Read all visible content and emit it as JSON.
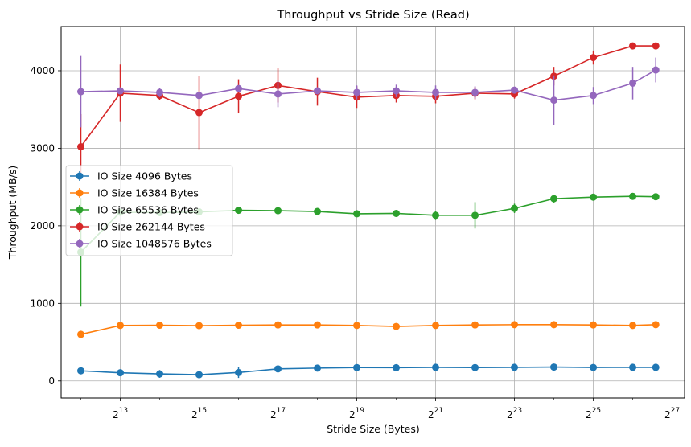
{
  "chart_data": {
    "type": "line",
    "title": "Throughput vs Stride Size (Read)",
    "xlabel": "Stride Size (Bytes)",
    "ylabel": "Throughput (MB/s)",
    "x_scale": "log2",
    "x_ticks": [
      {
        "exp": "13",
        "value": 8192
      },
      {
        "exp": "15",
        "value": 32768
      },
      {
        "exp": "17",
        "value": 131072
      },
      {
        "exp": "19",
        "value": 524288
      },
      {
        "exp": "21",
        "value": 2097152
      },
      {
        "exp": "23",
        "value": 8388608
      },
      {
        "exp": "25",
        "value": 33554432
      },
      {
        "exp": "27",
        "value": 134217728
      }
    ],
    "x_tick_base": "2",
    "y_ticks": [
      0,
      1000,
      2000,
      3000,
      4000
    ],
    "xlim": [
      2896,
      167000000
    ],
    "ylim": [
      -220,
      4570
    ],
    "grid": true,
    "legend_position": "center-left",
    "x": [
      4096,
      8192,
      16384,
      32768,
      65536,
      131072,
      262144,
      524288,
      1048576,
      2097152,
      4194304,
      8388608,
      16777216,
      33554432,
      67108864,
      100663296
    ],
    "series": [
      {
        "name": "IO Size 4096 Bytes",
        "color": "#1f77b4",
        "values": [
          130,
          105,
          90,
          80,
          108,
          155,
          165,
          172,
          170,
          175,
          172,
          175,
          178,
          173,
          175,
          175
        ],
        "errors": [
          15,
          10,
          50,
          30,
          70,
          20,
          15,
          10,
          10,
          10,
          10,
          10,
          10,
          10,
          10,
          10
        ]
      },
      {
        "name": "IO Size 16384 Bytes",
        "color": "#ff7f0e",
        "values": [
          600,
          715,
          718,
          712,
          718,
          722,
          722,
          715,
          702,
          715,
          722,
          725,
          725,
          722,
          715,
          725
        ],
        "errors": [
          15,
          15,
          10,
          10,
          15,
          15,
          10,
          10,
          15,
          10,
          10,
          10,
          10,
          10,
          10,
          10
        ]
      },
      {
        "name": "IO Size 65536 Bytes",
        "color": "#2ca02c",
        "values": [
          1660,
          2175,
          2170,
          2180,
          2200,
          2195,
          2185,
          2155,
          2160,
          2135,
          2135,
          2225,
          2350,
          2370,
          2380,
          2375
        ],
        "errors": [
          700,
          30,
          30,
          25,
          25,
          20,
          20,
          25,
          25,
          60,
          170,
          60,
          50,
          30,
          30,
          40
        ]
      },
      {
        "name": "IO Size 262144 Bytes",
        "color": "#d62728",
        "values": [
          3020,
          3710,
          3680,
          3460,
          3670,
          3810,
          3730,
          3660,
          3680,
          3670,
          3710,
          3700,
          3930,
          4170,
          4320,
          4320
        ],
        "errors": [
          420,
          370,
          60,
          470,
          220,
          220,
          180,
          140,
          90,
          90,
          80,
          60,
          120,
          90,
          20,
          20
        ]
      },
      {
        "name": "IO Size 1048576 Bytes",
        "color": "#9467bd",
        "values": [
          3730,
          3740,
          3720,
          3680,
          3770,
          3700,
          3740,
          3720,
          3740,
          3720,
          3720,
          3750,
          3620,
          3680,
          3840,
          4010
        ],
        "errors": [
          460,
          20,
          60,
          30,
          20,
          170,
          40,
          90,
          80,
          90,
          80,
          40,
          320,
          110,
          210,
          160
        ]
      }
    ]
  }
}
